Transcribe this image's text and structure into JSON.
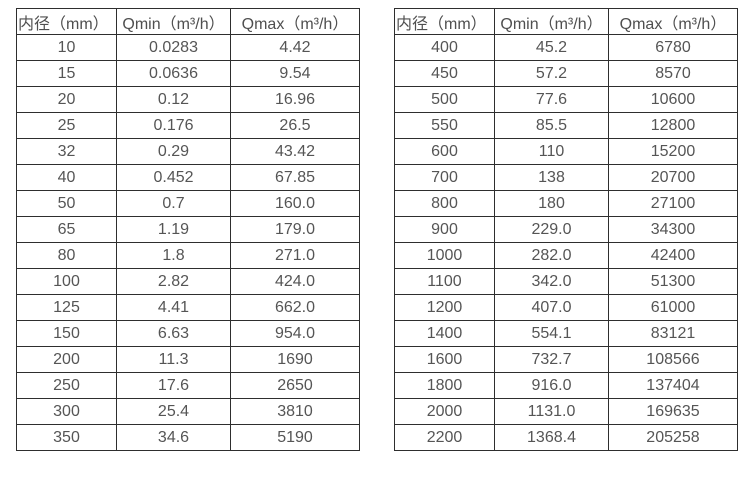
{
  "colors": {
    "background": "#ffffff",
    "border": "#2e2e2e",
    "text": "#555555"
  },
  "tables": [
    {
      "name": "flow-rate-table-small-diameters",
      "headers": {
        "diameter": "内径（mm）",
        "qmin": "Qmin（m³/h）",
        "qmax": "Qmax（m³/h）"
      },
      "rows": [
        [
          "10",
          "0.0283",
          "4.42"
        ],
        [
          "15",
          "0.0636",
          "9.54"
        ],
        [
          "20",
          "0.12",
          "16.96"
        ],
        [
          "25",
          "0.176",
          "26.5"
        ],
        [
          "32",
          "0.29",
          "43.42"
        ],
        [
          "40",
          "0.452",
          "67.85"
        ],
        [
          "50",
          "0.7",
          "160.0"
        ],
        [
          "65",
          "1.19",
          "179.0"
        ],
        [
          "80",
          "1.8",
          "271.0"
        ],
        [
          "100",
          "2.82",
          "424.0"
        ],
        [
          "125",
          "4.41",
          "662.0"
        ],
        [
          "150",
          "6.63",
          "954.0"
        ],
        [
          "200",
          "11.3",
          "1690"
        ],
        [
          "250",
          "17.6",
          "2650"
        ],
        [
          "300",
          "25.4",
          "3810"
        ],
        [
          "350",
          "34.6",
          "5190"
        ]
      ]
    },
    {
      "name": "flow-rate-table-large-diameters",
      "headers": {
        "diameter": "内径（mm）",
        "qmin": "Qmin（m³/h）",
        "qmax": "Qmax（m³/h）"
      },
      "rows": [
        [
          "400",
          "45.2",
          "6780"
        ],
        [
          "450",
          "57.2",
          "8570"
        ],
        [
          "500",
          "77.6",
          "10600"
        ],
        [
          "550",
          "85.5",
          "12800"
        ],
        [
          "600",
          "110",
          "15200"
        ],
        [
          "700",
          "138",
          "20700"
        ],
        [
          "800",
          "180",
          "27100"
        ],
        [
          "900",
          "229.0",
          "34300"
        ],
        [
          "1000",
          "282.0",
          "42400"
        ],
        [
          "1100",
          "342.0",
          "51300"
        ],
        [
          "1200",
          "407.0",
          "61000"
        ],
        [
          "1400",
          "554.1",
          "83121"
        ],
        [
          "1600",
          "732.7",
          "108566"
        ],
        [
          "1800",
          "916.0",
          "137404"
        ],
        [
          "2000",
          "1131.0",
          "169635"
        ],
        [
          "2200",
          "1368.4",
          "205258"
        ]
      ]
    }
  ]
}
